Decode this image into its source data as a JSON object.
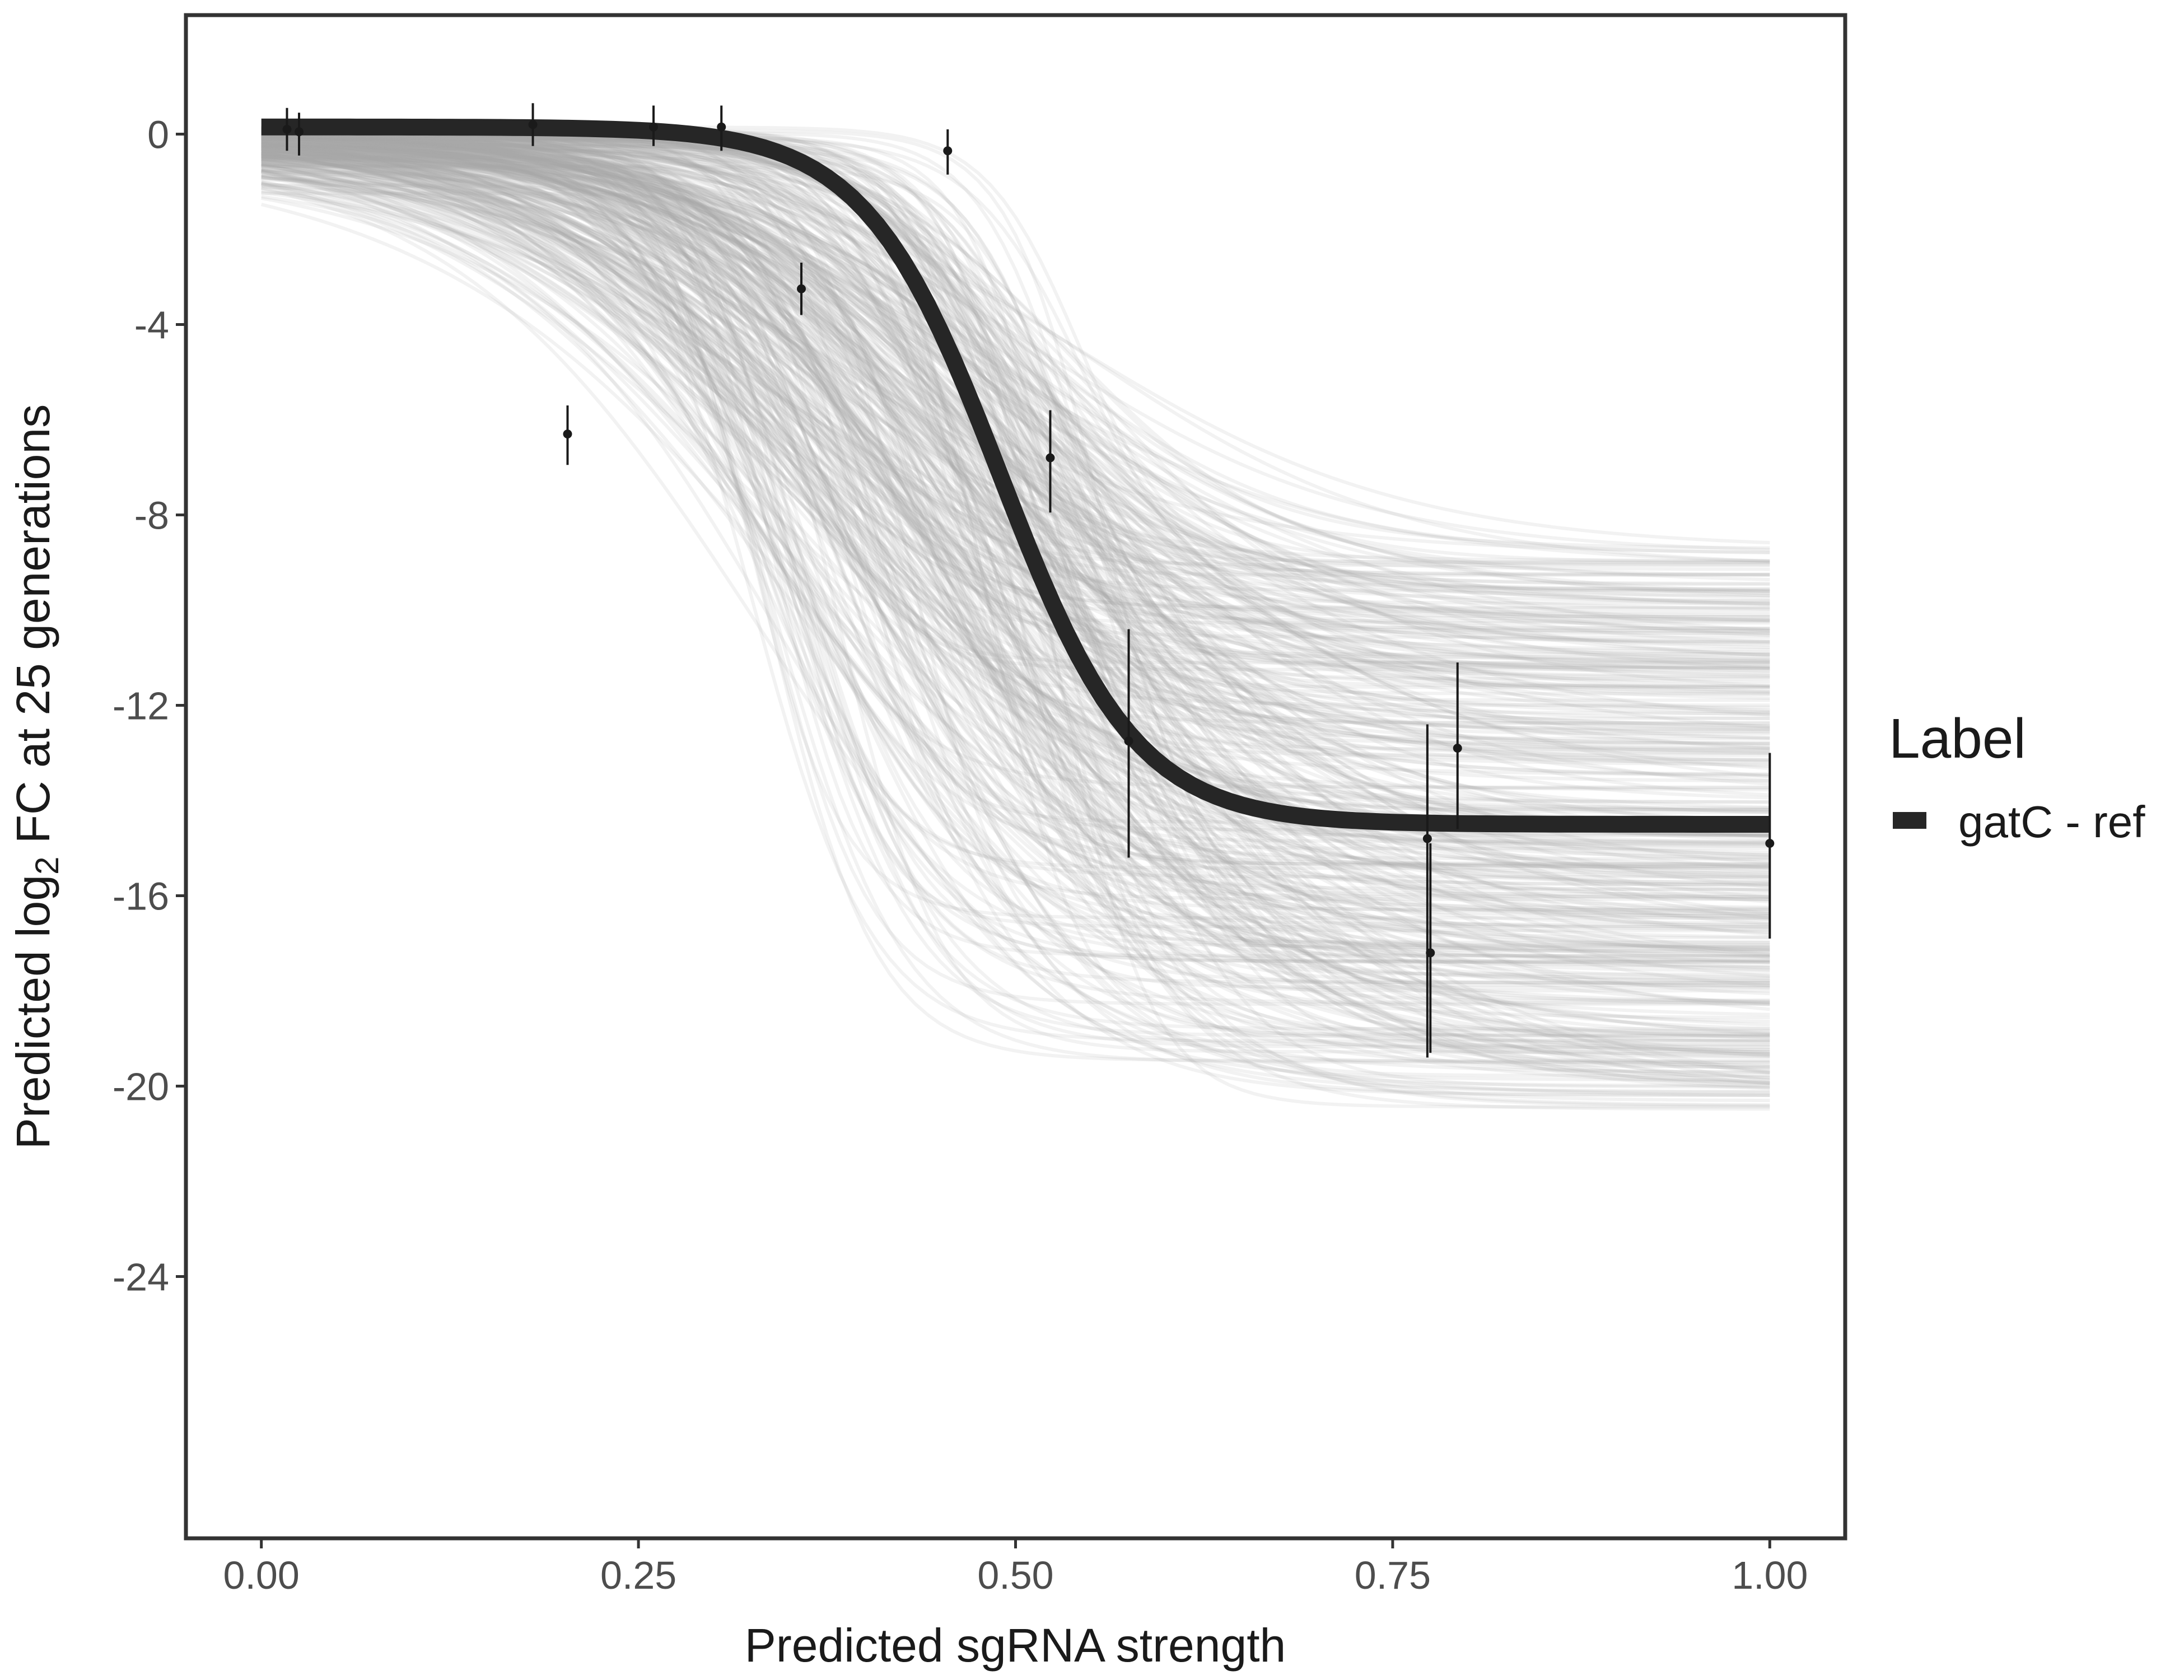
{
  "chart_data": {
    "type": "line",
    "title": "",
    "xlabel": "Predicted sgRNA strength",
    "ylabel": {
      "prefix": "Predicted  log",
      "subscript": "2",
      "suffix": " FC at 25 generations"
    },
    "xlim": [
      -0.05,
      1.05
    ],
    "ylim": [
      -29.5,
      2.5
    ],
    "grid": false,
    "x_ticks": [
      0,
      0.25,
      0.5,
      0.75,
      1
    ],
    "x_tick_labels": [
      "0.00",
      "0.25",
      "0.50",
      "0.75",
      "1.00"
    ],
    "y_ticks": [
      0,
      -4,
      -8,
      -12,
      -16,
      -20,
      -24
    ],
    "y_tick_labels": [
      "0",
      "-4",
      "-8",
      "-12",
      "-16",
      "-20",
      "-24"
    ],
    "legend": {
      "title": "Label",
      "position": "right",
      "entries": [
        {
          "label": "gatC - ref",
          "color": "#262626"
        }
      ]
    },
    "fit_curve": {
      "name": "gatC - ref",
      "model": "logistic",
      "upper": 0.15,
      "lower": -14.5,
      "midpoint": 0.49,
      "scale": 0.045,
      "color": "#262626"
    },
    "posterior_draws": {
      "count": 400,
      "color": "#a6a6a6",
      "upper_range": [
        -2.5,
        0.15
      ],
      "lower_range": [
        -20.5,
        -8.6
      ],
      "midpoint_range": [
        0.32,
        0.56
      ],
      "scale_range": [
        0.03,
        0.13
      ]
    },
    "points": [
      {
        "x": 0.017,
        "y": 0.1,
        "ymin": -0.35,
        "ymax": 0.55
      },
      {
        "x": 0.025,
        "y": 0.05,
        "ymin": -0.45,
        "ymax": 0.45
      },
      {
        "x": 0.18,
        "y": 0.2,
        "ymin": -0.25,
        "ymax": 0.65
      },
      {
        "x": 0.203,
        "y": -6.3,
        "ymin": -6.95,
        "ymax": -5.7
      },
      {
        "x": 0.26,
        "y": 0.15,
        "ymin": -0.25,
        "ymax": 0.6
      },
      {
        "x": 0.305,
        "y": 0.15,
        "ymin": -0.35,
        "ymax": 0.6
      },
      {
        "x": 0.358,
        "y": -3.25,
        "ymin": -3.8,
        "ymax": -2.7
      },
      {
        "x": 0.455,
        "y": -0.35,
        "ymin": -0.85,
        "ymax": 0.1
      },
      {
        "x": 0.523,
        "y": -6.8,
        "ymin": -7.95,
        "ymax": -5.8
      },
      {
        "x": 0.575,
        "y": -12.75,
        "ymin": -15.2,
        "ymax": -10.4
      },
      {
        "x": 0.773,
        "y": -14.8,
        "ymin": -19.4,
        "ymax": -12.4
      },
      {
        "x": 0.775,
        "y": -17.2,
        "ymin": -19.3,
        "ymax": -14.9
      },
      {
        "x": 0.793,
        "y": -12.9,
        "ymin": -14.6,
        "ymax": -11.1
      },
      {
        "x": 1.0,
        "y": -14.9,
        "ymin": -16.9,
        "ymax": -13.0
      }
    ]
  }
}
